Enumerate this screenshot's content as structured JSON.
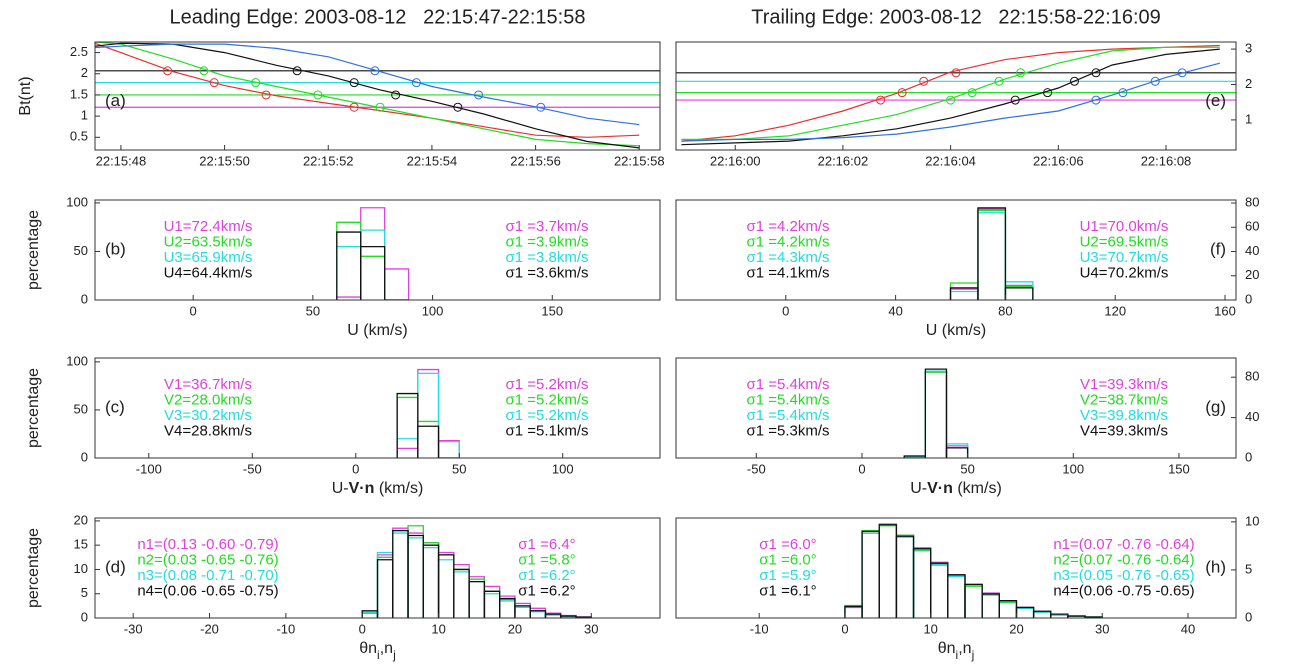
{
  "chart_data": [
    {
      "type": "line",
      "title": "Leading Edge: 2003-08-12   22:15:47-22:15:58",
      "panel_label": "(a)",
      "ylabel": "Bt(nt)",
      "x": [
        "22:15:47.5",
        "22:15:48",
        "22:15:49",
        "22:15:50",
        "22:15:51",
        "22:15:52",
        "22:15:53",
        "22:15:54",
        "22:15:55",
        "22:15:56",
        "22:15:57",
        "22:15:58"
      ],
      "xlim": [
        "22:15:47.5",
        "22:15:58.4"
      ],
      "xticks": [
        "22:15:48",
        "22:15:50",
        "22:15:52",
        "22:15:54",
        "22:15:56",
        "22:15:58"
      ],
      "ylim": [
        0.2,
        2.75
      ],
      "yticks": [
        0.5,
        1,
        1.5,
        2,
        2.5
      ],
      "hlines": [
        {
          "value": 2.07,
          "color": "#111111"
        },
        {
          "value": 1.79,
          "color": "#22dddd"
        },
        {
          "value": 1.5,
          "color": "#22dd22"
        },
        {
          "value": 1.21,
          "color": "#e040e0"
        }
      ],
      "series": [
        {
          "color": "#e83030",
          "values": [
            2.72,
            2.5,
            2.05,
            1.72,
            1.48,
            1.3,
            1.13,
            0.95,
            0.75,
            0.55,
            0.5,
            0.55
          ],
          "crossings": [
            "22:15:48.9",
            "22:15:49.8",
            "22:15:50.8",
            "22:15:52.5"
          ]
        },
        {
          "color": "#22dd22",
          "values": [
            2.75,
            2.7,
            2.35,
            1.95,
            1.7,
            1.45,
            1.2,
            0.95,
            0.7,
            0.45,
            0.35,
            0.3
          ],
          "crossings": [
            "22:15:49.6",
            "22:15:50.6",
            "22:15:51.8",
            "22:15:53"
          ]
        },
        {
          "color": "#111111",
          "values": [
            2.65,
            2.72,
            2.7,
            2.5,
            2.2,
            1.95,
            1.62,
            1.35,
            1.05,
            0.7,
            0.4,
            0.25
          ],
          "crossings": [
            "22:15:51.4",
            "22:15:52.5",
            "22:15:53.3",
            "22:15:54.5"
          ]
        },
        {
          "color": "#3070e0",
          "values": [
            2.62,
            2.65,
            2.7,
            2.7,
            2.6,
            2.4,
            2.05,
            1.7,
            1.45,
            1.22,
            0.95,
            0.8
          ],
          "crossings": [
            "22:15:52.9",
            "22:15:53.7",
            "22:15:54.9",
            "22:15:56.1"
          ]
        }
      ]
    },
    {
      "type": "histogram",
      "panel_label": "(b)",
      "ylabel": "percentage",
      "xlabel": [
        "U (km/s)"
      ],
      "xlim": [
        -41,
        195
      ],
      "xticks": [
        0,
        50,
        100,
        150
      ],
      "ylim": [
        0,
        103
      ],
      "yticks": [
        0,
        50,
        100
      ],
      "bins": [
        60,
        70,
        80,
        90
      ],
      "series": [
        {
          "color": "#e040e0",
          "values": [
            3,
            95,
            32
          ]
        },
        {
          "color": "#22dd22",
          "values": [
            80,
            45,
            0
          ]
        },
        {
          "color": "#22dddd",
          "values": [
            55,
            72,
            0
          ]
        },
        {
          "color": "#111111",
          "values": [
            70,
            55,
            0
          ]
        }
      ],
      "notes_left": [
        "U1=72.4km/s",
        "U2=63.5km/s",
        "U3=65.9km/s",
        "U4=64.4km/s"
      ],
      "notes_right": [
        "σ1 =3.7km/s",
        "σ1 =3.9km/s",
        "σ1 =3.8km/s",
        "σ1 =3.6km/s"
      ]
    },
    {
      "type": "histogram",
      "panel_label": "(c)",
      "ylabel": "percentage",
      "xlabel": [
        "U-",
        "V·n",
        " (km/s)"
      ],
      "xlim": [
        -126,
        147
      ],
      "xticks": [
        -100,
        -50,
        0,
        50,
        100
      ],
      "ylim": [
        0,
        104
      ],
      "yticks": [
        0,
        50,
        100
      ],
      "bins": [
        20,
        30,
        40,
        50
      ],
      "series": [
        {
          "color": "#e040e0",
          "values": [
            10,
            92,
            18
          ]
        },
        {
          "color": "#22dd22",
          "values": [
            63,
            38,
            0
          ]
        },
        {
          "color": "#22dddd",
          "values": [
            20,
            88,
            17
          ]
        },
        {
          "color": "#111111",
          "values": [
            67,
            33,
            0
          ]
        }
      ],
      "notes_left": [
        "V1=36.7km/s",
        "V2=28.0km/s",
        "V3=30.2km/s",
        "V4=28.8km/s"
      ],
      "notes_right": [
        "σ1 =5.2km/s",
        "σ1 =5.2km/s",
        "σ1 =5.2km/s",
        "σ1 =5.1km/s"
      ]
    },
    {
      "type": "histogram",
      "panel_label": "(d)",
      "ylabel": "percentage",
      "xlabel": [
        "θn",
        "i",
        ",n",
        "j"
      ],
      "xlim": [
        -35,
        39
      ],
      "xticks": [
        -30,
        -20,
        -10,
        0,
        10,
        20,
        30
      ],
      "ylim": [
        0,
        20.6
      ],
      "yticks": [
        0,
        5,
        10,
        15,
        20
      ],
      "bins": [
        0,
        2,
        4,
        6,
        8,
        10,
        12,
        14,
        16,
        18,
        20,
        22,
        24,
        26,
        28,
        30
      ],
      "series": [
        {
          "color": "#e040e0",
          "values": [
            1,
            13,
            18.5,
            17.5,
            15.5,
            13.5,
            11,
            8.5,
            6.5,
            4.5,
            3,
            2,
            1,
            0.5,
            0.2
          ]
        },
        {
          "color": "#22dd22",
          "values": [
            1,
            12.5,
            18,
            19,
            15.5,
            13,
            10,
            8,
            5.5,
            3.8,
            2.5,
            1.5,
            0.7,
            0.3,
            0.1
          ]
        },
        {
          "color": "#22dddd",
          "values": [
            1.2,
            13.5,
            17.5,
            16.5,
            14.5,
            12,
            9.5,
            7.5,
            5,
            3.5,
            2.2,
            1.3,
            0.6,
            0.3,
            0.1
          ]
        },
        {
          "color": "#111111",
          "values": [
            1.5,
            12,
            18,
            17,
            15,
            13,
            10,
            7.5,
            5.5,
            4,
            2.5,
            1.5,
            0.8,
            0.4,
            0.2
          ]
        }
      ],
      "notes_left": [
        "n1=(0.13 -0.60 -0.79)",
        "n2=(0.03 -0.65 -0.76)",
        "n3=(0.08 -0.71 -0.70)",
        "n4=(0.06 -0.65 -0.75)"
      ],
      "notes_right": [
        "σ1 =6.4°",
        "σ1 =5.8°",
        "σ1 =6.2°",
        "σ1 =6.2°"
      ]
    },
    {
      "type": "line",
      "title": "Trailing Edge: 2003-08-12   22:15:58-22:16:09",
      "panel_label": "(e)",
      "x": [
        "22:15:59",
        "22:16:00",
        "22:16:01",
        "22:16:02",
        "22:16:03",
        "22:16:04",
        "22:16:05",
        "22:16:06",
        "22:16:07",
        "22:16:08",
        "22:16:09"
      ],
      "xlim": [
        "22:15:58.9",
        "22:16:09.3"
      ],
      "xticks": [
        "22:16:00",
        "22:16:02",
        "22:16:04",
        "22:16:06",
        "22:16:08"
      ],
      "ylim": [
        0.15,
        3.2
      ],
      "yticks": [
        1,
        2,
        3
      ],
      "hlines": [
        {
          "value": 2.33,
          "color": "#111111"
        },
        {
          "value": 2.09,
          "color": "#22dddd"
        },
        {
          "value": 1.77,
          "color": "#22dd22"
        },
        {
          "value": 1.56,
          "color": "#e040e0"
        }
      ],
      "series": [
        {
          "color": "#e83030",
          "values": [
            0.4,
            0.55,
            0.85,
            1.25,
            1.75,
            2.35,
            2.7,
            2.9,
            3.0,
            3.05,
            3.1
          ],
          "crossings": [
            "22:16:04.1",
            "22:16:03.5",
            "22:16:03.1",
            "22:16:02.7"
          ]
        },
        {
          "color": "#22dd22",
          "values": [
            0.45,
            0.45,
            0.55,
            0.85,
            1.15,
            1.6,
            2.15,
            2.6,
            2.95,
            3.05,
            3.05
          ],
          "crossings": [
            "22:16:05.3",
            "22:16:04.9",
            "22:16:04.4",
            "22:16:04"
          ]
        },
        {
          "color": "#111111",
          "values": [
            0.3,
            0.35,
            0.4,
            0.55,
            0.75,
            1.05,
            1.45,
            1.9,
            2.55,
            2.85,
            3.0
          ],
          "crossings": [
            "22:16:06.7",
            "22:16:06.3",
            "22:16:05.8",
            "22:16:05.2"
          ]
        },
        {
          "color": "#3070e0",
          "values": [
            0.4,
            0.45,
            0.45,
            0.5,
            0.6,
            0.8,
            1.05,
            1.25,
            1.7,
            2.2,
            2.6
          ],
          "crossings": [
            "22:16:08.3",
            "22:16:07.8",
            "22:16:07.2",
            "22:16:06.7"
          ]
        }
      ]
    },
    {
      "type": "histogram",
      "panel_label": "(f)",
      "xlabel": [
        "U (km/s)"
      ],
      "xlim": [
        -40,
        164
      ],
      "xticks": [
        0,
        40,
        80,
        120,
        160
      ],
      "ylim": [
        0,
        82.5
      ],
      "yticks": [
        0,
        20,
        40,
        60,
        80
      ],
      "bins": [
        60,
        70,
        80,
        90
      ],
      "series": [
        {
          "color": "#e040e0",
          "values": [
            9,
            75,
            12
          ]
        },
        {
          "color": "#22dd22",
          "values": [
            14,
            74,
            11
          ]
        },
        {
          "color": "#22dddd",
          "values": [
            7,
            72,
            15
          ]
        },
        {
          "color": "#111111",
          "values": [
            10,
            76,
            10
          ]
        }
      ],
      "notes_left": [
        "σ1 =4.2km/s",
        "σ1 =4.2km/s",
        "σ1 =4.3km/s",
        "σ1 =4.1km/s"
      ],
      "notes_right": [
        "U1=70.0km/s",
        "U2=69.5km/s",
        "U3=70.7km/s",
        "U4=70.2km/s"
      ]
    },
    {
      "type": "histogram",
      "panel_label": "(g)",
      "xlabel": [
        "U-",
        "V·n",
        " (km/s)"
      ],
      "xlim": [
        -88,
        177
      ],
      "xticks": [
        -50,
        0,
        50,
        100,
        150
      ],
      "ylim": [
        0,
        99
      ],
      "yticks": [
        0,
        40,
        80
      ],
      "bins": [
        20,
        30,
        40,
        50
      ],
      "series": [
        {
          "color": "#e040e0",
          "values": [
            1,
            85,
            12
          ]
        },
        {
          "color": "#22dd22",
          "values": [
            2,
            85,
            10
          ]
        },
        {
          "color": "#22dddd",
          "values": [
            1,
            86,
            14
          ]
        },
        {
          "color": "#111111",
          "values": [
            2,
            88,
            10
          ]
        }
      ],
      "notes_left": [
        "σ1 =5.4km/s",
        "σ1 =5.4km/s",
        "σ1 =5.4km/s",
        "σ1 =5.3km/s"
      ],
      "notes_right": [
        "V1=39.3km/s",
        "V2=38.7km/s",
        "V3=39.8km/s",
        "V4=39.3km/s"
      ]
    },
    {
      "type": "histogram",
      "panel_label": "(h)",
      "xlabel": [
        "θn",
        "i",
        ",n",
        "j"
      ],
      "xlim": [
        -19.7,
        45.6
      ],
      "xticks": [
        -10,
        0,
        10,
        20,
        30,
        40
      ],
      "ylim": [
        0,
        10.4
      ],
      "yticks": [
        0,
        5,
        10
      ],
      "bins": [
        0,
        2,
        4,
        6,
        8,
        10,
        12,
        14,
        16,
        18,
        20,
        22,
        24,
        26,
        28,
        30
      ],
      "series": [
        {
          "color": "#e040e0",
          "values": [
            1.1,
            9,
            9.7,
            8.6,
            7.3,
            5.8,
            4.5,
            3.5,
            2.6,
            1.8,
            1.1,
            0.7,
            0.4,
            0.2,
            0.1
          ]
        },
        {
          "color": "#22dd22",
          "values": [
            1.3,
            9.1,
            9.6,
            8.6,
            7,
            5.5,
            4.4,
            3.3,
            2.4,
            1.6,
            1,
            0.6,
            0.3,
            0.2,
            0.1
          ]
        },
        {
          "color": "#22dddd",
          "values": [
            1.2,
            8.8,
            9.8,
            8.4,
            7.1,
            5.6,
            4.3,
            3.4,
            2.5,
            1.7,
            1,
            0.6,
            0.3,
            0.2,
            0.1
          ]
        },
        {
          "color": "#111111",
          "values": [
            1.2,
            9,
            9.7,
            8.5,
            7.2,
            5.7,
            4.5,
            3.5,
            2.5,
            1.8,
            1.1,
            0.7,
            0.4,
            0.2,
            0.1
          ]
        }
      ],
      "notes_left": [
        "σ1 =6.0°",
        "σ1 =6.0°",
        "σ1 =5.9°",
        "σ1 =6.1°"
      ],
      "notes_right": [
        "n1=(0.07 -0.76 -0.64)",
        "n2=(0.07 -0.76 -0.64)",
        "n3=(0.05 -0.76 -0.65)",
        "n4=(0.06 -0.75 -0.65)"
      ]
    }
  ]
}
